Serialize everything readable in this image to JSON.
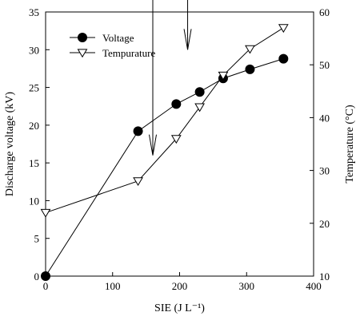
{
  "chart_data": {
    "type": "line",
    "xlabel": "SIE (J L⁻¹)",
    "ylabel_left": "Discharge voltage (kV)",
    "ylabel_right": "Temperature (°C)",
    "xlim": [
      0,
      400
    ],
    "ylim_left": [
      0,
      35
    ],
    "ylim_right": [
      10,
      60
    ],
    "x_ticks": [
      0,
      100,
      200,
      300,
      400
    ],
    "y_left_ticks": [
      0,
      5,
      10,
      15,
      20,
      25,
      30,
      35
    ],
    "y_right_ticks": [
      10,
      20,
      30,
      40,
      50,
      60
    ],
    "grid": false,
    "legend_position": "top-left",
    "series": [
      {
        "name": "Voltage",
        "axis": "left",
        "marker": "filled-circle",
        "x": [
          0,
          138,
          195,
          230,
          265,
          305,
          355
        ],
        "y": [
          0,
          19.2,
          22.8,
          24.4,
          26.2,
          27.4,
          28.8
        ]
      },
      {
        "name": "Tempurature",
        "axis": "right",
        "marker": "open-triangle-down",
        "x": [
          0,
          138,
          195,
          230,
          265,
          305,
          355
        ],
        "y": [
          22,
          28,
          36,
          42,
          48,
          53,
          57
        ]
      }
    ],
    "annotations": [
      {
        "type": "arrow",
        "meaning": "voltage series reads on left axis",
        "from": [
          160,
          16
        ],
        "corner": [
          160,
          38.5
        ],
        "to": [
          70,
          38.5
        ]
      },
      {
        "type": "arrow",
        "meaning": "temperature series reads on right axis",
        "from": [
          212,
          30
        ],
        "corner": [
          212,
          40.5
        ],
        "to": [
          290,
          40.5
        ]
      }
    ]
  }
}
